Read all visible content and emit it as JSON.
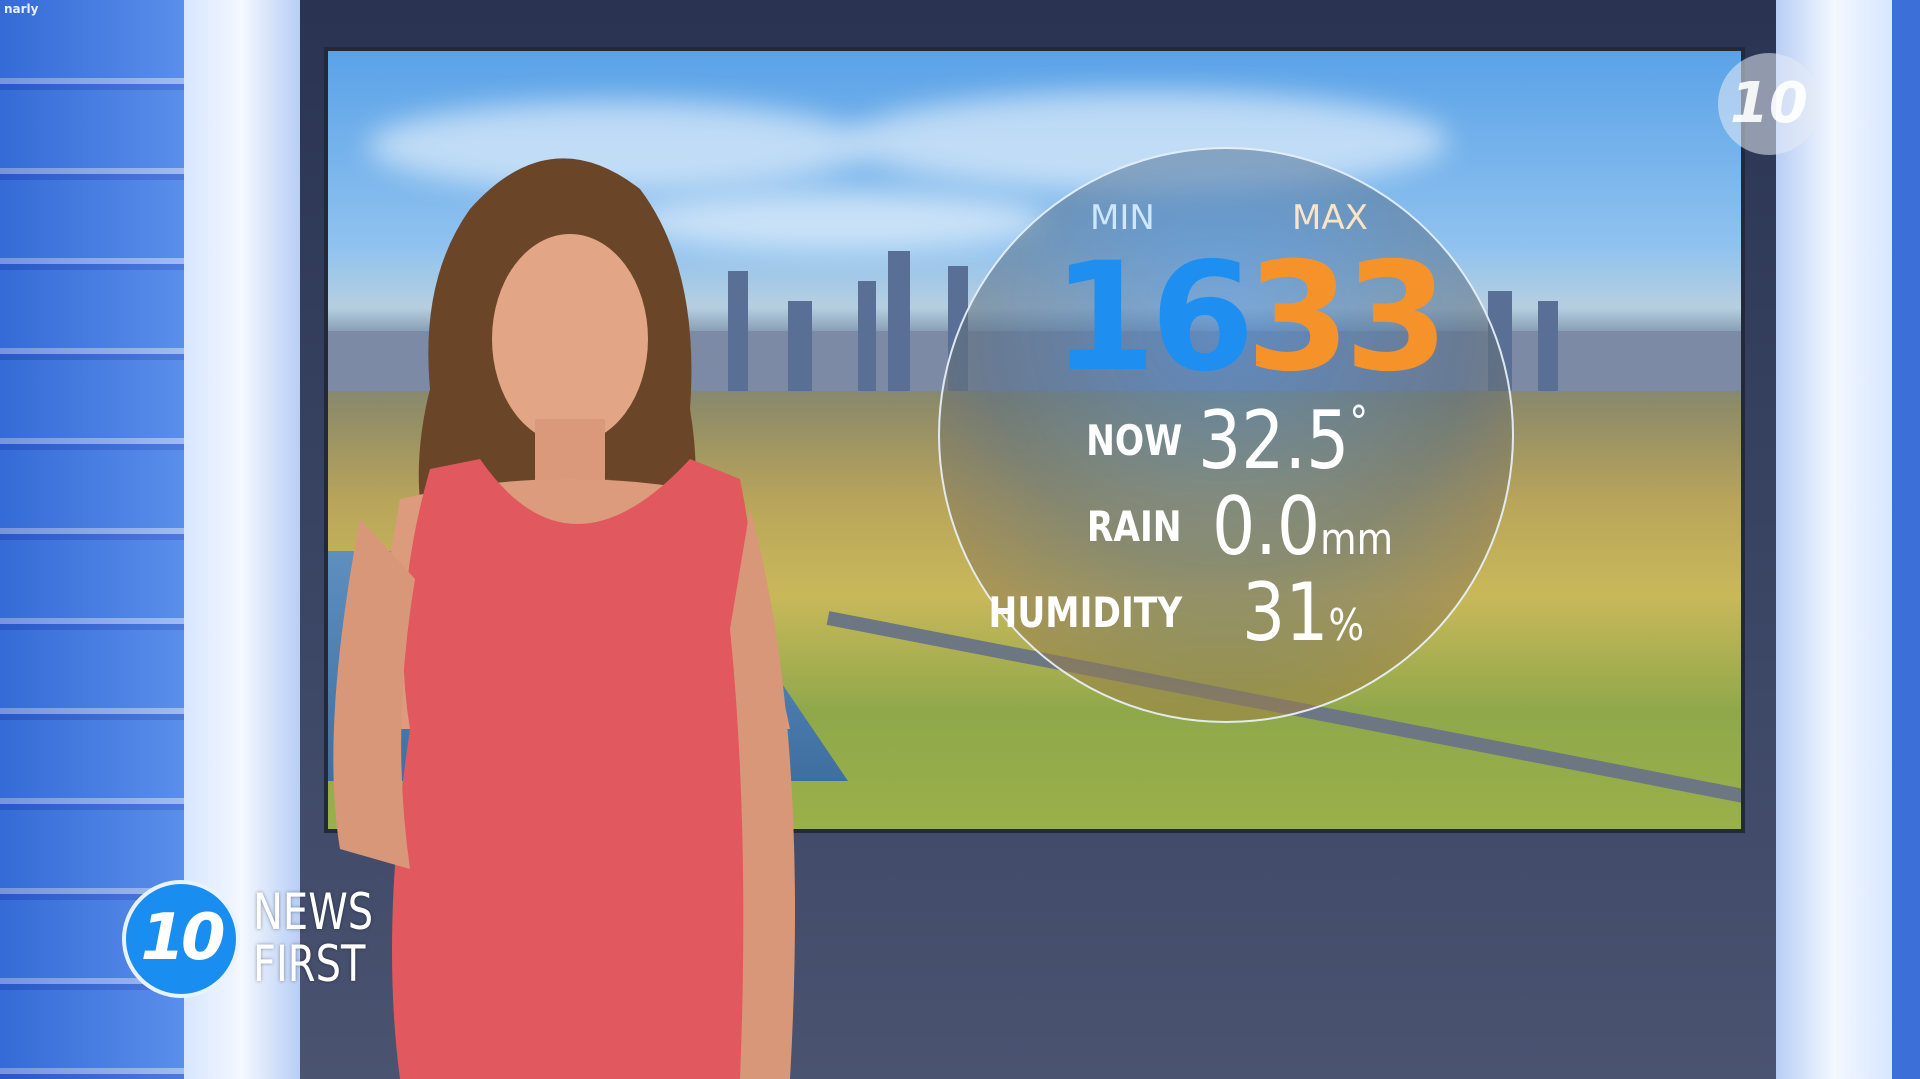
{
  "corner_tag": "narly",
  "weather": {
    "min_label": "MIN",
    "min_value": "16",
    "max_label": "MAX",
    "max_value": "33",
    "now_label": "NOW",
    "now_value": "32.5",
    "now_unit": "°",
    "rain_label": "RAIN",
    "rain_value": "0.0",
    "rain_unit": "mm",
    "humidity_label": "HUMIDITY",
    "humidity_value": "31",
    "humidity_unit": "%",
    "colors": {
      "min": "#1e8ff0",
      "max": "#f5932a"
    }
  },
  "channel_bug": "10",
  "branding": {
    "logo_number": "10",
    "line1": "NEWS",
    "line2": "FIRST",
    "color": "#1a8ef0"
  }
}
